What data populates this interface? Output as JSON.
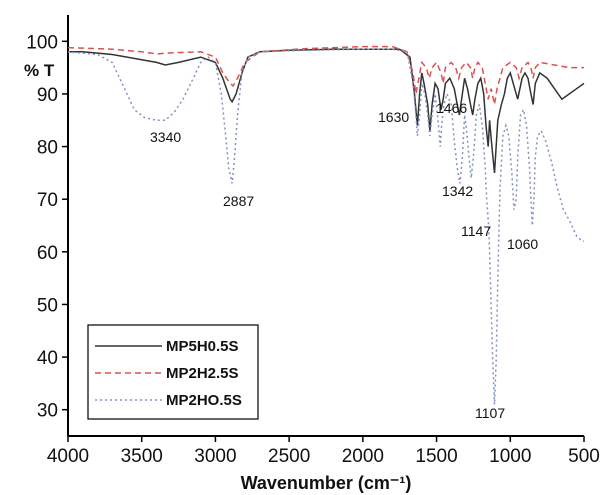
{
  "chart_data": {
    "type": "line",
    "xlabel": "Wavenumber (cm⁻¹)",
    "ylabel": "% T",
    "xlim": [
      4000,
      500
    ],
    "ylim": [
      25,
      105
    ],
    "x_reversed": true,
    "x_ticks": [
      4000,
      3500,
      3000,
      2500,
      2000,
      1500,
      1000,
      500
    ],
    "y_ticks": [
      30,
      40,
      50,
      60,
      70,
      80,
      90,
      100
    ],
    "grid": false,
    "legend_position": "bottom-left",
    "series": [
      {
        "name": "MP5H0.5S",
        "color": "#333333",
        "dash": "solid",
        "points": [
          [
            4000,
            98
          ],
          [
            3900,
            98
          ],
          [
            3700,
            97.5
          ],
          [
            3600,
            97
          ],
          [
            3500,
            96.5
          ],
          [
            3400,
            96
          ],
          [
            3340,
            95.5
          ],
          [
            3250,
            96
          ],
          [
            3100,
            97
          ],
          [
            3000,
            96
          ],
          [
            2950,
            93
          ],
          [
            2900,
            89
          ],
          [
            2887,
            88.5
          ],
          [
            2860,
            90
          ],
          [
            2820,
            94
          ],
          [
            2780,
            97
          ],
          [
            2700,
            98
          ],
          [
            2500,
            98.3
          ],
          [
            2200,
            98.5
          ],
          [
            1900,
            98.5
          ],
          [
            1750,
            98.5
          ],
          [
            1680,
            97
          ],
          [
            1650,
            90
          ],
          [
            1630,
            84
          ],
          [
            1615,
            90
          ],
          [
            1600,
            94
          ],
          [
            1585,
            92
          ],
          [
            1560,
            88
          ],
          [
            1545,
            83
          ],
          [
            1530,
            88
          ],
          [
            1510,
            92
          ],
          [
            1490,
            91
          ],
          [
            1470,
            87
          ],
          [
            1455,
            89
          ],
          [
            1440,
            92
          ],
          [
            1410,
            93
          ],
          [
            1380,
            91
          ],
          [
            1360,
            88
          ],
          [
            1345,
            86
          ],
          [
            1330,
            89
          ],
          [
            1310,
            93
          ],
          [
            1290,
            91
          ],
          [
            1270,
            88
          ],
          [
            1255,
            86
          ],
          [
            1240,
            89
          ],
          [
            1220,
            92
          ],
          [
            1200,
            93
          ],
          [
            1180,
            90
          ],
          [
            1165,
            84
          ],
          [
            1150,
            80
          ],
          [
            1140,
            85
          ],
          [
            1125,
            80
          ],
          [
            1107,
            75
          ],
          [
            1100,
            78
          ],
          [
            1085,
            85
          ],
          [
            1060,
            88
          ],
          [
            1040,
            90
          ],
          [
            1020,
            93
          ],
          [
            1000,
            94
          ],
          [
            970,
            91
          ],
          [
            950,
            89
          ],
          [
            920,
            93
          ],
          [
            900,
            94
          ],
          [
            880,
            93
          ],
          [
            860,
            90
          ],
          [
            845,
            88
          ],
          [
            830,
            92
          ],
          [
            800,
            94
          ],
          [
            750,
            93
          ],
          [
            700,
            91
          ],
          [
            650,
            89
          ],
          [
            600,
            90
          ],
          [
            550,
            91
          ],
          [
            500,
            92
          ]
        ]
      },
      {
        "name": "MP2H2.5S",
        "color": "#d9534f",
        "dash": "dashed",
        "points": [
          [
            4000,
            98.8
          ],
          [
            3700,
            98.5
          ],
          [
            3500,
            98
          ],
          [
            3400,
            97.6
          ],
          [
            3300,
            97.8
          ],
          [
            3100,
            98
          ],
          [
            3000,
            97
          ],
          [
            2950,
            94
          ],
          [
            2900,
            92
          ],
          [
            2880,
            91.5
          ],
          [
            2850,
            93
          ],
          [
            2800,
            96
          ],
          [
            2700,
            98
          ],
          [
            2400,
            98.6
          ],
          [
            2000,
            99
          ],
          [
            1800,
            99
          ],
          [
            1700,
            98
          ],
          [
            1660,
            94
          ],
          [
            1640,
            90
          ],
          [
            1620,
            93
          ],
          [
            1600,
            96
          ],
          [
            1570,
            95
          ],
          [
            1550,
            93
          ],
          [
            1530,
            95
          ],
          [
            1500,
            96
          ],
          [
            1470,
            94
          ],
          [
            1455,
            92
          ],
          [
            1440,
            95
          ],
          [
            1400,
            96
          ],
          [
            1370,
            95
          ],
          [
            1350,
            93
          ],
          [
            1330,
            95
          ],
          [
            1300,
            96
          ],
          [
            1270,
            95
          ],
          [
            1255,
            93
          ],
          [
            1240,
            95
          ],
          [
            1220,
            96
          ],
          [
            1190,
            95
          ],
          [
            1170,
            92
          ],
          [
            1150,
            89
          ],
          [
            1130,
            91
          ],
          [
            1107,
            88
          ],
          [
            1090,
            91
          ],
          [
            1070,
            93
          ],
          [
            1050,
            95
          ],
          [
            1000,
            96
          ],
          [
            960,
            95
          ],
          [
            940,
            93
          ],
          [
            920,
            95
          ],
          [
            880,
            96
          ],
          [
            860,
            95
          ],
          [
            845,
            93
          ],
          [
            830,
            95
          ],
          [
            800,
            96
          ],
          [
            700,
            95.5
          ],
          [
            600,
            95
          ],
          [
            500,
            95
          ]
        ]
      },
      {
        "name": "MP2HO.5S",
        "color": "#8090c0",
        "dash": "dotted",
        "points": [
          [
            4000,
            98
          ],
          [
            3800,
            97.5
          ],
          [
            3700,
            96
          ],
          [
            3650,
            93
          ],
          [
            3600,
            90
          ],
          [
            3550,
            87
          ],
          [
            3480,
            85.5
          ],
          [
            3400,
            85
          ],
          [
            3340,
            85
          ],
          [
            3280,
            86.5
          ],
          [
            3220,
            89
          ],
          [
            3150,
            93
          ],
          [
            3100,
            96
          ],
          [
            3050,
            97
          ],
          [
            3000,
            96
          ],
          [
            2960,
            90
          ],
          [
            2930,
            82
          ],
          [
            2910,
            76
          ],
          [
            2887,
            73
          ],
          [
            2870,
            78
          ],
          [
            2850,
            86
          ],
          [
            2820,
            94
          ],
          [
            2780,
            97
          ],
          [
            2700,
            98
          ],
          [
            2400,
            98.3
          ],
          [
            2000,
            98.5
          ],
          [
            1800,
            98.5
          ],
          [
            1700,
            98
          ],
          [
            1660,
            92
          ],
          [
            1640,
            86
          ],
          [
            1630,
            82
          ],
          [
            1615,
            86
          ],
          [
            1600,
            92
          ],
          [
            1580,
            90
          ],
          [
            1560,
            86
          ],
          [
            1545,
            82
          ],
          [
            1530,
            86
          ],
          [
            1510,
            90
          ],
          [
            1490,
            85
          ],
          [
            1475,
            80
          ],
          [
            1466,
            84
          ],
          [
            1450,
            88
          ],
          [
            1430,
            90
          ],
          [
            1400,
            88
          ],
          [
            1380,
            81
          ],
          [
            1360,
            76
          ],
          [
            1342,
            73
          ],
          [
            1325,
            78
          ],
          [
            1310,
            86
          ],
          [
            1300,
            84
          ],
          [
            1280,
            78
          ],
          [
            1265,
            74
          ],
          [
            1250,
            78
          ],
          [
            1230,
            86
          ],
          [
            1210,
            88
          ],
          [
            1190,
            84
          ],
          [
            1170,
            76
          ],
          [
            1160,
            70
          ],
          [
            1147,
            65
          ],
          [
            1140,
            60
          ],
          [
            1130,
            50
          ],
          [
            1120,
            40
          ],
          [
            1107,
            31
          ],
          [
            1095,
            40
          ],
          [
            1085,
            55
          ],
          [
            1070,
            72
          ],
          [
            1050,
            82
          ],
          [
            1030,
            84
          ],
          [
            1010,
            82
          ],
          [
            990,
            75
          ],
          [
            975,
            68
          ],
          [
            960,
            70
          ],
          [
            950,
            78
          ],
          [
            930,
            86
          ],
          [
            910,
            87
          ],
          [
            890,
            84
          ],
          [
            870,
            76
          ],
          [
            860,
            70
          ],
          [
            850,
            65
          ],
          [
            840,
            70
          ],
          [
            830,
            78
          ],
          [
            815,
            82
          ],
          [
            790,
            83
          ],
          [
            760,
            81
          ],
          [
            720,
            77
          ],
          [
            680,
            72
          ],
          [
            640,
            68
          ],
          [
            600,
            66
          ],
          [
            550,
            63
          ],
          [
            510,
            62
          ],
          [
            500,
            62
          ]
        ]
      }
    ],
    "annotations": [
      "3340",
      "2887",
      "1630",
      "1466",
      "1342",
      "1147",
      "1060",
      "1107"
    ]
  }
}
